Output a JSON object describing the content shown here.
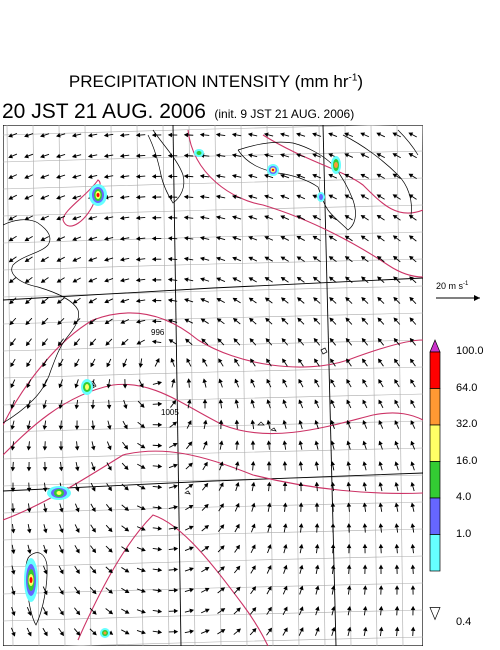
{
  "title": {
    "main": "PRECIPITATION INTENSITY (mm hr",
    "sup": "-1",
    "close": ")"
  },
  "subtitle": {
    "main": "20 JST 21 AUG. 2006",
    "init": "(init. 9 JST 21 AUG. 2006)"
  },
  "wind_legend": {
    "label": "20 m s",
    "sup": "-1"
  },
  "contour_labels": [
    "996",
    "1005"
  ],
  "colorbar": {
    "labels": [
      "100.0",
      "64.0",
      "32.0",
      "16.0",
      "4.0",
      "1.0",
      "0.4"
    ],
    "colors": [
      "#cc33cc",
      "#ff0000",
      "#ff9933",
      "#ffff66",
      "#33cc33",
      "#6666ff",
      "#66ffff",
      "#ffffff"
    ]
  },
  "colors": {
    "contour": "#cc3366",
    "grid": "#999999",
    "arrow": "#000000"
  }
}
